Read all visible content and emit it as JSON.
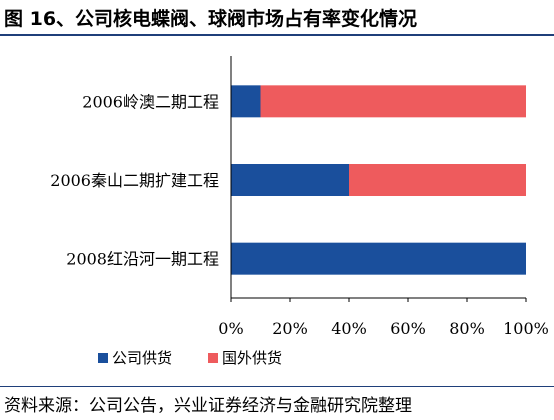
{
  "header": {
    "title": "图 16、公司核电蝶阀、球阀市场占有率变化情况"
  },
  "chart_data": {
    "type": "bar",
    "orientation": "horizontal",
    "stacked": true,
    "percent": true,
    "categories": [
      "2006岭澳二期工程",
      "2006秦山二期扩建工程",
      "2008红沿河一期工程"
    ],
    "series": [
      {
        "name": "公司供货",
        "values": [
          10,
          40,
          100
        ],
        "color": "#1a4f9c"
      },
      {
        "name": "国外供货",
        "values": [
          90,
          60,
          0
        ],
        "color": "#ee5b5d"
      }
    ],
    "xlim": [
      0,
      100
    ],
    "xticks": [
      "0%",
      "20%",
      "40%",
      "60%",
      "80%",
      "100%"
    ],
    "grid": false,
    "legend_position": "bottom"
  },
  "footer": {
    "source": "资料来源：公司公告，兴业证券经济与金融研究院整理"
  }
}
